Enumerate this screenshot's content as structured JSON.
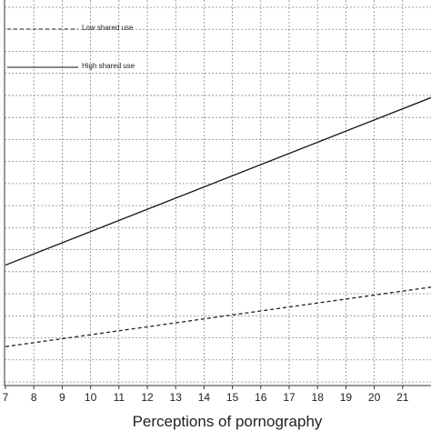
{
  "chart_data": {
    "type": "line",
    "xlabel": "Perceptions of pornography",
    "xlim": [
      7,
      22
    ],
    "ylim": [
      0,
      17
    ],
    "x_ticks": [
      "7",
      "8",
      "9",
      "10",
      "11",
      "12",
      "13",
      "14",
      "15",
      "16",
      "17",
      "18",
      "19",
      "20",
      "21"
    ],
    "grid": true,
    "legend_position": "top-left",
    "series": [
      {
        "name": "Low shared use",
        "style": "dashed",
        "color": "#222222",
        "x": [
          7,
          22
        ],
        "y": [
          1.6,
          4.3
        ]
      },
      {
        "name": "High shared use",
        "style": "solid",
        "color": "#111111",
        "x": [
          7,
          22
        ],
        "y": [
          5.3,
          12.9
        ]
      }
    ]
  }
}
